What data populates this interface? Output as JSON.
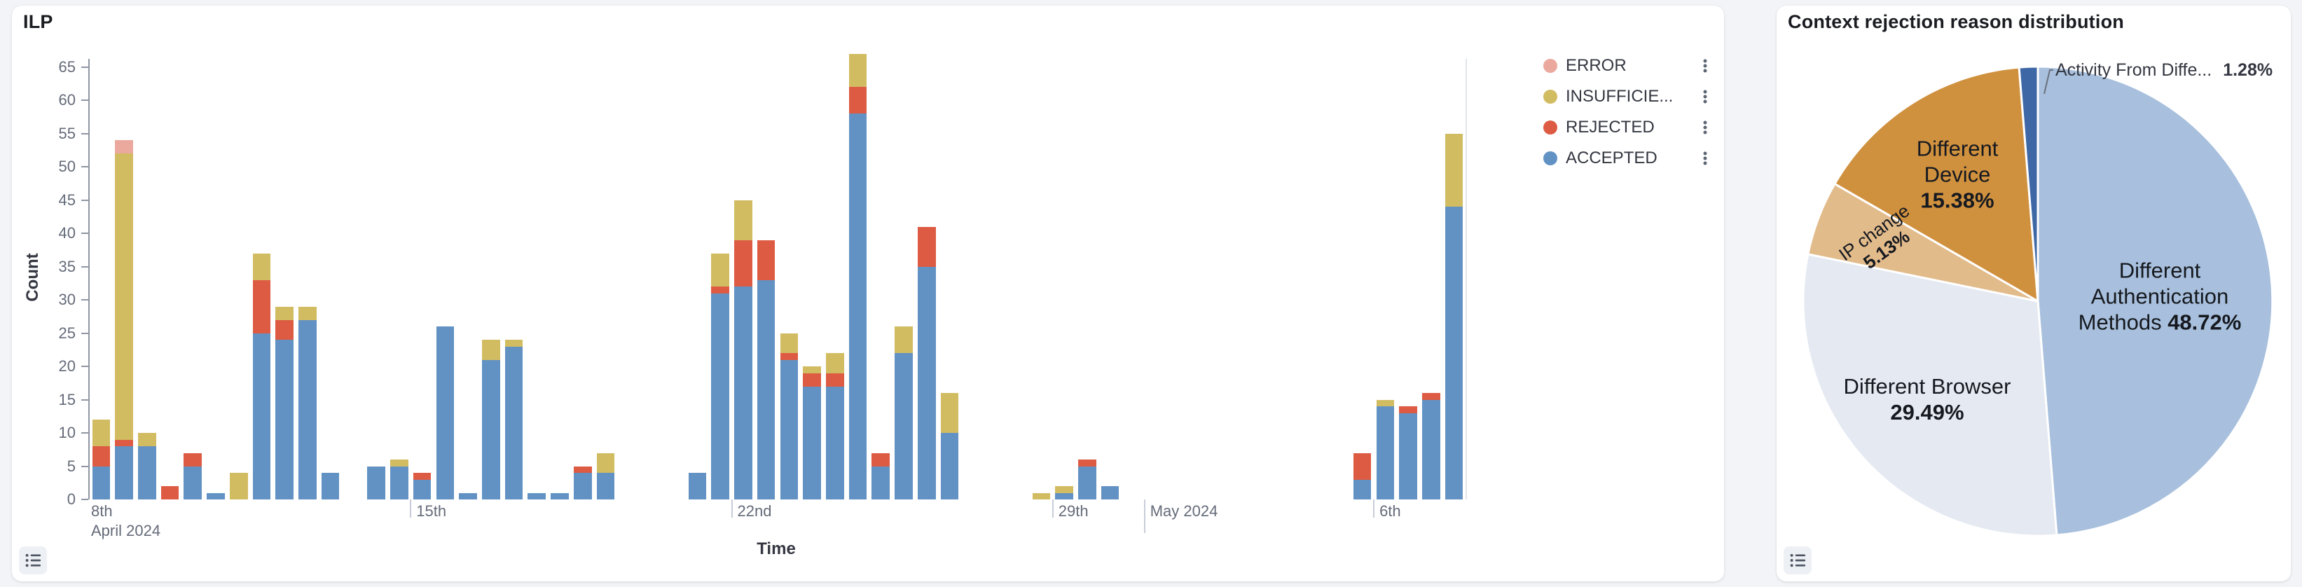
{
  "app": {
    "background": "#f2f4f8"
  },
  "left_panel": {
    "title": "ILP",
    "legend": [
      {
        "label": "ERROR",
        "color": "#eba99e"
      },
      {
        "label": "INSUFFICIE...",
        "color": "#d2bc62"
      },
      {
        "label": "REJECTED",
        "color": "#dd5b43"
      },
      {
        "label": "ACCEPTED",
        "color": "#6292c4"
      }
    ]
  },
  "right_panel": {
    "title": "Context rejection reason distribution"
  },
  "chart_data": [
    {
      "type": "bar",
      "stacked": true,
      "title": "ILP",
      "xlabel": "Time",
      "ylabel": "Count",
      "ylim": [
        0,
        68
      ],
      "y_ticks": [
        0,
        5,
        10,
        15,
        20,
        25,
        30,
        35,
        40,
        45,
        50,
        55,
        60,
        65
      ],
      "x_axis_note": "12-hour buckets from April 8 2024",
      "x_ticks": [
        {
          "label": "8th",
          "sublabel": "April 2024",
          "bucket": 0
        },
        {
          "label": "15th",
          "bucket": 14
        },
        {
          "label": "22nd",
          "bucket": 28
        },
        {
          "label": "29th",
          "bucket": 42
        },
        {
          "label": "May 2024",
          "bucket": 46,
          "major": true
        },
        {
          "label": "6th",
          "bucket": 56
        }
      ],
      "series": [
        {
          "name": "ACCEPTED",
          "color": "#6292c4",
          "values": [
            5,
            8,
            8,
            0,
            5,
            1,
            0,
            25,
            24,
            27,
            4,
            0,
            5,
            5,
            3,
            26,
            1,
            21,
            23,
            1,
            1,
            4,
            4,
            0,
            0,
            0,
            4,
            31,
            32,
            33,
            21,
            17,
            17,
            58,
            5,
            22,
            35,
            10,
            0,
            0,
            0,
            0,
            1,
            5,
            2,
            0,
            0,
            0,
            0,
            0,
            0,
            0,
            0,
            0,
            0,
            3,
            14,
            13,
            15,
            44
          ]
        },
        {
          "name": "REJECTED",
          "color": "#dd5b43",
          "values": [
            3,
            1,
            0,
            2,
            2,
            0,
            0,
            8,
            3,
            0,
            0,
            0,
            0,
            0,
            1,
            0,
            0,
            0,
            0,
            0,
            0,
            1,
            0,
            0,
            0,
            0,
            0,
            1,
            7,
            6,
            1,
            2,
            2,
            4,
            2,
            0,
            6,
            0,
            0,
            0,
            0,
            0,
            0,
            1,
            0,
            0,
            0,
            0,
            0,
            0,
            0,
            0,
            0,
            0,
            0,
            4,
            0,
            1,
            1,
            0
          ]
        },
        {
          "name": "INSUFFICIE...",
          "color": "#d2bc62",
          "values": [
            4,
            43,
            2,
            0,
            0,
            0,
            4,
            4,
            2,
            2,
            0,
            0,
            0,
            1,
            0,
            0,
            0,
            3,
            1,
            0,
            0,
            0,
            3,
            0,
            0,
            0,
            0,
            5,
            6,
            0,
            3,
            1,
            3,
            5,
            0,
            4,
            0,
            6,
            0,
            0,
            0,
            1,
            1,
            0,
            0,
            0,
            0,
            0,
            0,
            0,
            0,
            0,
            0,
            0,
            0,
            0,
            1,
            0,
            0,
            11
          ]
        },
        {
          "name": "ERROR",
          "color": "#eba99e",
          "values": [
            0,
            2,
            0,
            0,
            0,
            0,
            0,
            0,
            0,
            0,
            0,
            0,
            0,
            0,
            0,
            0,
            0,
            0,
            0,
            0,
            0,
            0,
            0,
            0,
            0,
            0,
            0,
            0,
            0,
            0,
            0,
            0,
            0,
            0,
            0,
            0,
            0,
            0,
            0,
            0,
            0,
            0,
            0,
            0,
            0,
            0,
            0,
            0,
            0,
            0,
            0,
            0,
            0,
            0,
            0,
            0,
            0,
            0,
            0,
            0
          ]
        }
      ],
      "legend_position": "right"
    },
    {
      "type": "pie",
      "title": "Context rejection reason distribution",
      "slices": [
        {
          "name": "Different Authentication Methods",
          "pct": 48.72,
          "pct_text": "48.72%",
          "color": "#a8c0dd",
          "label_lines": [
            "Different",
            "Authentication",
            "Methods"
          ],
          "pct_inline": true
        },
        {
          "name": "Different Browser",
          "pct": 29.49,
          "pct_text": "29.49%",
          "color": "#e4e9f2",
          "label_lines": [
            "Different Browser"
          ],
          "pct_inline": false
        },
        {
          "name": "IP change",
          "pct": 5.13,
          "pct_text": "5.13%",
          "color": "#e2bb8b",
          "label_lines": [
            "IP change"
          ],
          "pct_inline": false
        },
        {
          "name": "Different Device",
          "pct": 15.38,
          "pct_text": "15.38%",
          "color": "#d0913f",
          "label_lines": [
            "Different",
            "Device"
          ],
          "pct_inline": false
        },
        {
          "name": "Activity From Diffe...",
          "pct": 1.28,
          "pct_text": "1.28%",
          "color": "#3e68a5",
          "callout": true
        }
      ]
    }
  ]
}
